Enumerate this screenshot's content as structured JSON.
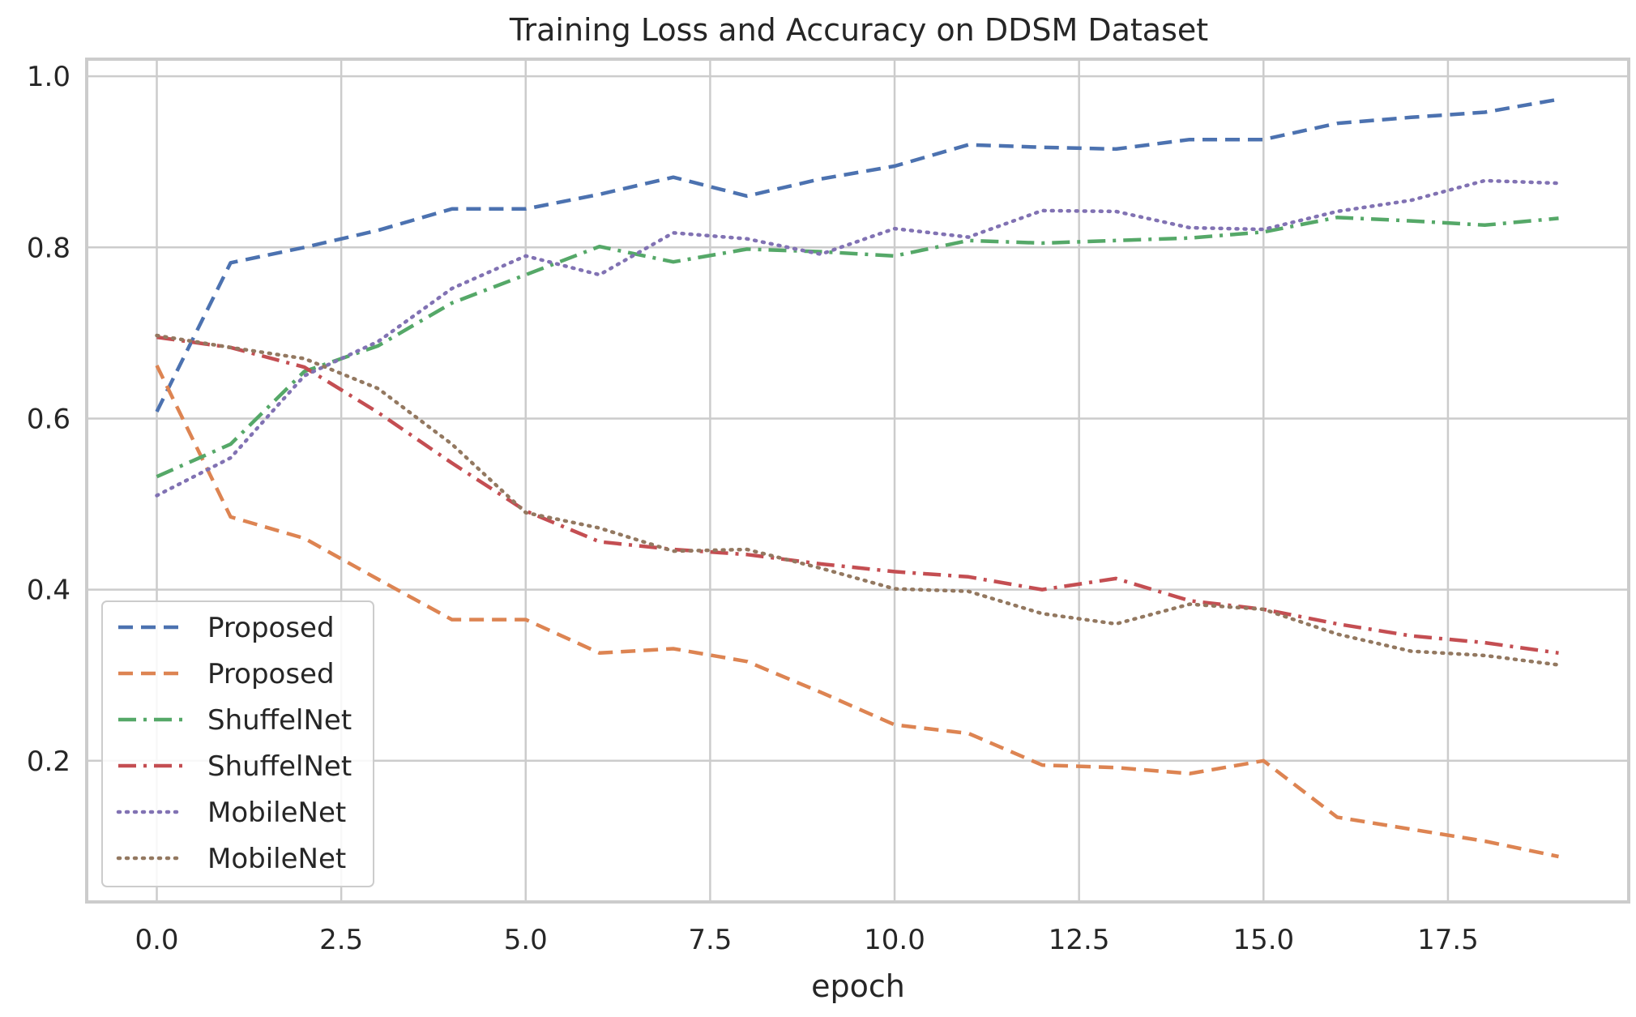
{
  "chart_data": {
    "type": "line",
    "title": "Training Loss and Accuracy on DDSM Dataset",
    "xlabel": "epoch",
    "ylabel": "",
    "xlim": [
      -0.95,
      19.95
    ],
    "ylim": [
      0.035,
      1.02
    ],
    "xticks": [
      "0.0",
      "2.5",
      "5.0",
      "7.5",
      "10.0",
      "12.5",
      "15.0",
      "17.5"
    ],
    "xtick_values": [
      0,
      2.5,
      5,
      7.5,
      10,
      12.5,
      15,
      17.5
    ],
    "yticks": [
      "0.2",
      "0.4",
      "0.6",
      "0.8",
      "1.0"
    ],
    "ytick_values": [
      0.2,
      0.4,
      0.6,
      0.8,
      1.0
    ],
    "grid": true,
    "legend_position": "lower-left",
    "x": [
      0,
      1,
      2,
      3,
      4,
      5,
      6,
      7,
      8,
      9,
      10,
      11,
      12,
      13,
      14,
      15,
      16,
      17,
      18,
      19
    ],
    "series": [
      {
        "name": "Proposed",
        "color": "#4c72b0",
        "style": "dashed",
        "values": [
          0.608,
          0.782,
          0.8,
          0.82,
          0.845,
          0.845,
          0.862,
          0.882,
          0.86,
          0.88,
          0.895,
          0.92,
          0.917,
          0.915,
          0.926,
          0.926,
          0.945,
          0.952,
          0.958,
          0.973
        ]
      },
      {
        "name": "Proposed",
        "color": "#dd8452",
        "style": "dashed",
        "values": [
          0.662,
          0.485,
          0.46,
          0.412,
          0.365,
          0.365,
          0.326,
          0.331,
          0.316,
          0.28,
          0.242,
          0.232,
          0.195,
          0.192,
          0.185,
          0.2,
          0.134,
          0.12,
          0.106,
          0.088
        ]
      },
      {
        "name": "ShuffelNet",
        "color": "#55a868",
        "style": "dashdot",
        "values": [
          0.532,
          0.57,
          0.655,
          0.685,
          0.735,
          0.768,
          0.801,
          0.783,
          0.798,
          0.795,
          0.79,
          0.808,
          0.805,
          0.808,
          0.811,
          0.818,
          0.835,
          0.831,
          0.826,
          0.834
        ]
      },
      {
        "name": "ShuffelNet",
        "color": "#c44e52",
        "style": "dashdot",
        "values": [
          0.695,
          0.683,
          0.66,
          0.607,
          0.548,
          0.492,
          0.456,
          0.447,
          0.441,
          0.43,
          0.421,
          0.415,
          0.4,
          0.413,
          0.387,
          0.377,
          0.36,
          0.346,
          0.338,
          0.326
        ]
      },
      {
        "name": "MobileNet",
        "color": "#8172b3",
        "style": "dotted",
        "values": [
          0.51,
          0.554,
          0.65,
          0.69,
          0.752,
          0.79,
          0.768,
          0.817,
          0.81,
          0.792,
          0.822,
          0.812,
          0.843,
          0.842,
          0.823,
          0.821,
          0.842,
          0.855,
          0.878,
          0.875
        ]
      },
      {
        "name": "MobileNet",
        "color": "#937860",
        "style": "dotted",
        "values": [
          0.697,
          0.683,
          0.67,
          0.635,
          0.57,
          0.49,
          0.472,
          0.445,
          0.447,
          0.425,
          0.401,
          0.398,
          0.372,
          0.36,
          0.383,
          0.377,
          0.348,
          0.328,
          0.323,
          0.312
        ]
      }
    ]
  }
}
